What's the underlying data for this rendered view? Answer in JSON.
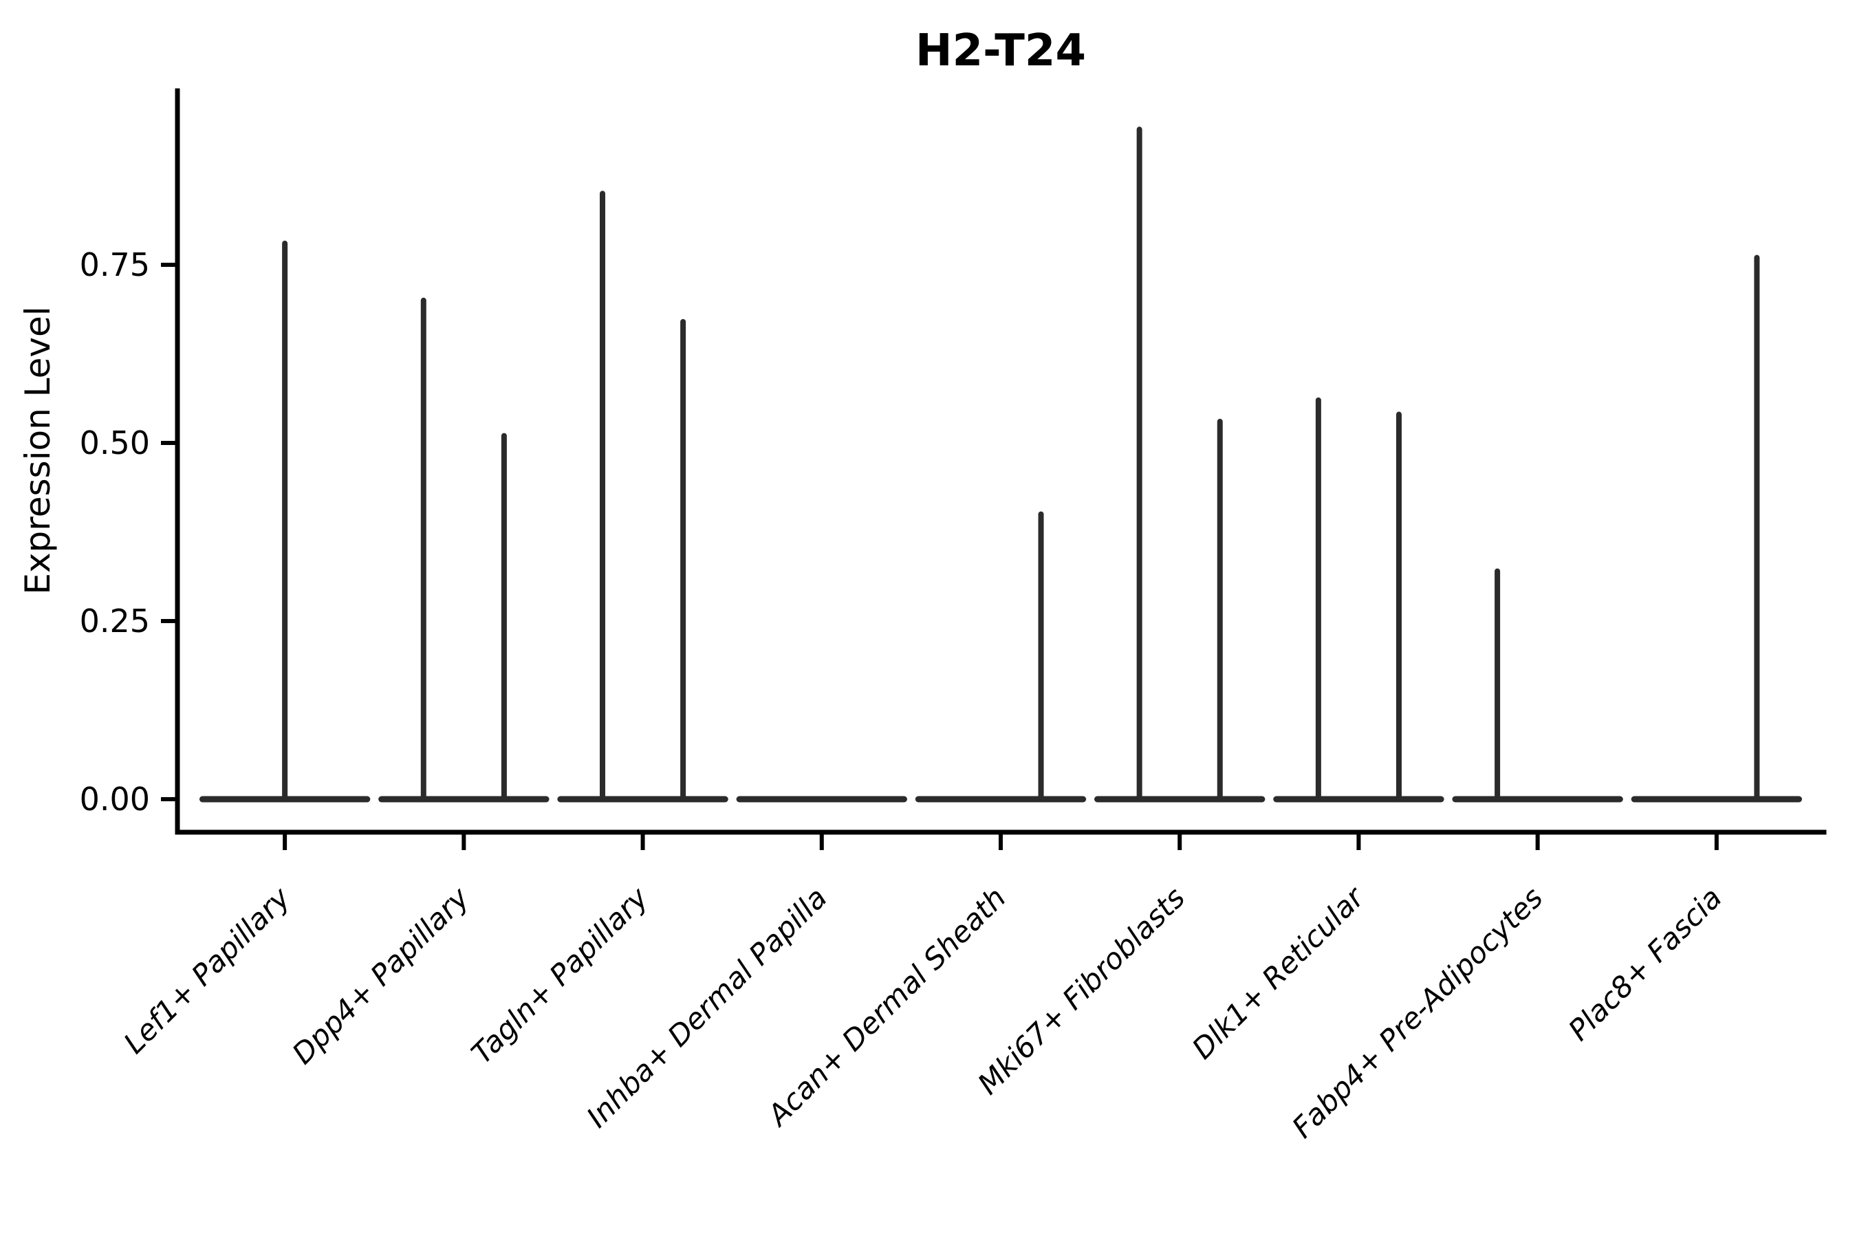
{
  "chart_data": {
    "type": "violin",
    "title": "H2-T24",
    "ylabel": "Expression Level",
    "xlabel": "",
    "grid": false,
    "legend": false,
    "ylim": [
      -0.05,
      1.0
    ],
    "yticks": {
      "values": [
        0.0,
        0.25,
        0.5,
        0.75
      ],
      "labels": [
        "0.00",
        "0.25",
        "0.50",
        "0.75"
      ]
    },
    "categories": [
      "Lef1+ Papillary",
      "Dpp4+ Papillary",
      "Tagln+ Papillary",
      "Inhba+ Dermal Papilla",
      "Acan+ Dermal Sheath",
      "Mki67+ Fibroblasts",
      "Dlk1+ Reticular",
      "Fabp4+ Pre-Adipocytes",
      "Plac8+ Fascia"
    ],
    "note": "Flat violins at 0 with thin density spikes; spike offset is in category-width units (0 = centered full-width violin, ±0.225 = dodged sub-violin), max = top expression value of the spike",
    "baseline_halfwidth": 0.46,
    "baseline_value": 0.0,
    "groups": [
      {
        "label": "Lef1+ Papillary",
        "spikes": [
          {
            "offset": 0,
            "max": 0.78
          }
        ]
      },
      {
        "label": "Dpp4+ Papillary",
        "spikes": [
          {
            "offset": -0.225,
            "max": 0.7
          },
          {
            "offset": 0.225,
            "max": 0.51
          }
        ]
      },
      {
        "label": "Tagln+ Papillary",
        "spikes": [
          {
            "offset": -0.225,
            "max": 0.85
          },
          {
            "offset": 0.225,
            "max": 0.67
          }
        ]
      },
      {
        "label": "Inhba+ Dermal Papilla",
        "spikes": []
      },
      {
        "label": "Acan+ Dermal Sheath",
        "spikes": [
          {
            "offset": 0.225,
            "max": 0.4
          }
        ]
      },
      {
        "label": "Mki67+ Fibroblasts",
        "spikes": [
          {
            "offset": -0.225,
            "max": 0.94
          },
          {
            "offset": 0.225,
            "max": 0.53
          }
        ]
      },
      {
        "label": "Dlk1+ Reticular",
        "spikes": [
          {
            "offset": -0.225,
            "max": 0.56
          },
          {
            "offset": 0.225,
            "max": 0.54
          }
        ]
      },
      {
        "label": "Fabp4+ Pre-Adipocytes",
        "spikes": [
          {
            "offset": -0.225,
            "max": 0.32
          }
        ]
      },
      {
        "label": "Plac8+ Fascia",
        "spikes": [
          {
            "offset": 0.225,
            "max": 0.76
          }
        ]
      }
    ],
    "colors": {
      "line": "#2b2b2b",
      "axis": "#000000",
      "background": "#ffffff"
    }
  }
}
